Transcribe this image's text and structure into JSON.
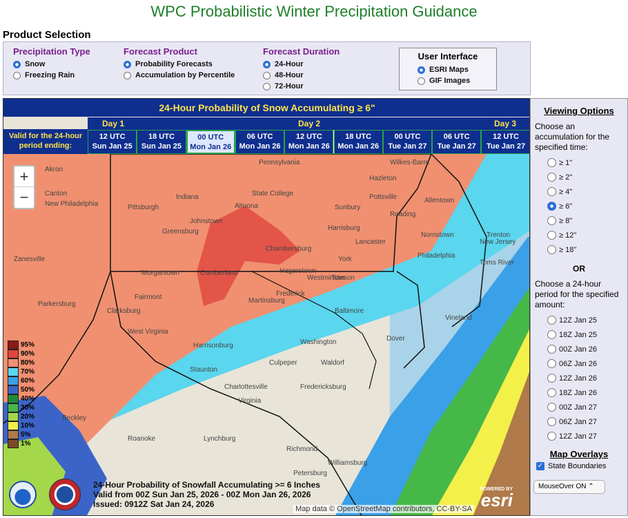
{
  "page": {
    "title": "WPC Probabilistic Winter Precipitation Guidance",
    "product_selection": "Product Selection"
  },
  "controls": {
    "precip_type": {
      "title": "Precipitation Type",
      "options": [
        "Snow",
        "Freezing Rain"
      ],
      "selected": 0
    },
    "forecast_product": {
      "title": "Forecast Product",
      "options": [
        "Probability Forecasts",
        "Accumulation by Percentile"
      ],
      "selected": 0
    },
    "forecast_duration": {
      "title": "Forecast Duration",
      "options": [
        "24-Hour",
        "48-Hour",
        "72-Hour"
      ],
      "selected": 0
    },
    "user_interface": {
      "title": "User Interface",
      "options": [
        "ESRI Maps",
        "GIF Images"
      ],
      "selected": 0
    }
  },
  "banner": {
    "title": "24-Hour Probability of Snow Accumulating ≥ 6\"",
    "valid_label": "Valid for the 24-hour period ending:",
    "days": [
      "Day 1",
      "Day 2",
      "Day 3"
    ],
    "periods": [
      {
        "time": "12 UTC",
        "date": "Sun Jan 25"
      },
      {
        "time": "18 UTC",
        "date": "Sun Jan 25"
      },
      {
        "time": "00 UTC",
        "date": "Mon Jan 26"
      },
      {
        "time": "06 UTC",
        "date": "Mon Jan 26"
      },
      {
        "time": "12 UTC",
        "date": "Mon Jan 26"
      },
      {
        "time": "18 UTC",
        "date": "Mon Jan 26"
      },
      {
        "time": "00 UTC",
        "date": "Tue Jan 27"
      },
      {
        "time": "06 UTC",
        "date": "Tue Jan 27"
      },
      {
        "time": "12 UTC",
        "date": "Tue Jan 27"
      }
    ],
    "selected_period": 2
  },
  "map": {
    "zoom_in": "+",
    "zoom_out": "−",
    "legend": [
      {
        "label": "95%",
        "color": "#8b1a1a"
      },
      {
        "label": "90%",
        "color": "#e0463e"
      },
      {
        "label": "80%",
        "color": "#f09070"
      },
      {
        "label": "70%",
        "color": "#5ad6ee"
      },
      {
        "label": "60%",
        "color": "#3aa0e8"
      },
      {
        "label": "50%",
        "color": "#3c64c8"
      },
      {
        "label": "40%",
        "color": "#1f8a3a"
      },
      {
        "label": "30%",
        "color": "#46b848"
      },
      {
        "label": "20%",
        "color": "#a4d84a"
      },
      {
        "label": "10%",
        "color": "#f4f04a"
      },
      {
        "label": "5%",
        "color": "#b07a4a"
      },
      {
        "label": "1%",
        "color": "#7a4a2a"
      }
    ],
    "caption_lines": [
      "24-Hour Probability of Snowfall Accumulating >= 6 Inches",
      "Valid from 00Z Sun Jan 25, 2026 - 00Z Mon Jan 26, 2026",
      "Issued: 0912Z Sat Jan 24, 2026"
    ],
    "attribution": "Map data © OpenStreetMap contributors, CC-BY-SA",
    "esri_powered": "POWERED BY",
    "esri": "esri",
    "places": [
      {
        "name": "Pennsylvania"
      },
      {
        "name": "State College"
      },
      {
        "name": "Pittsburgh"
      },
      {
        "name": "Harrisburg"
      },
      {
        "name": "Altoona"
      },
      {
        "name": "Chambersburg"
      },
      {
        "name": "Philadelphia"
      },
      {
        "name": "Baltimore"
      },
      {
        "name": "Washington"
      },
      {
        "name": "Richmond"
      },
      {
        "name": "Virginia"
      },
      {
        "name": "West Virginia"
      },
      {
        "name": "Morgantown"
      },
      {
        "name": "Charlottesville"
      },
      {
        "name": "Lancaster"
      },
      {
        "name": "Allentown"
      },
      {
        "name": "Vineland"
      },
      {
        "name": "Dover"
      },
      {
        "name": "Akron"
      },
      {
        "name": "Canton"
      },
      {
        "name": "Lynchburg"
      },
      {
        "name": "Roanoke"
      },
      {
        "name": "Johnstown"
      },
      {
        "name": "York"
      },
      {
        "name": "Fairmont"
      },
      {
        "name": "Clarksburg"
      },
      {
        "name": "Frederick"
      },
      {
        "name": "Staunton"
      },
      {
        "name": "Harrisonburg"
      },
      {
        "name": "Fredericksburg"
      },
      {
        "name": "Culpeper"
      },
      {
        "name": "Beckley"
      },
      {
        "name": "Zanesville"
      },
      {
        "name": "Parkersburg"
      },
      {
        "name": "Martinsburg"
      },
      {
        "name": "Hagerstown"
      },
      {
        "name": "Westminster"
      },
      {
        "name": "Towson"
      },
      {
        "name": "Greensburg"
      },
      {
        "name": "Sunbury"
      },
      {
        "name": "Hazleton"
      },
      {
        "name": "Pottsville"
      },
      {
        "name": "Reading"
      },
      {
        "name": "Norristown"
      },
      {
        "name": "Trenton"
      },
      {
        "name": "New Jersey"
      },
      {
        "name": "Toms River"
      },
      {
        "name": "Cumberland"
      },
      {
        "name": "Petersburg"
      },
      {
        "name": "Williamsburg"
      },
      {
        "name": "Waldorf"
      },
      {
        "name": "New Philadelphia"
      },
      {
        "name": "Indiana"
      },
      {
        "name": "Wilkes-Barre"
      }
    ]
  },
  "sidebar": {
    "title": "Viewing Options",
    "text1": "Choose an accumulation for the specified time:",
    "amounts": [
      "≥ 1\"",
      "≥ 2\"",
      "≥ 4\"",
      "≥ 6\"",
      "≥ 8\"",
      "≥ 12\"",
      "≥ 18\""
    ],
    "selected_amount": 3,
    "or": "OR",
    "text2": "Choose a 24-hour period for the specified amount:",
    "periods": [
      "12Z Jan 25",
      "18Z Jan 25",
      "00Z Jan 26",
      "06Z Jan 26",
      "12Z Jan 26",
      "18Z Jan 26",
      "00Z Jan 27",
      "06Z Jan 27",
      "12Z Jan 27"
    ],
    "overlays_title": "Map Overlays",
    "state_boundaries": "State Boundaries",
    "mouseover": "MouseOver ON"
  }
}
